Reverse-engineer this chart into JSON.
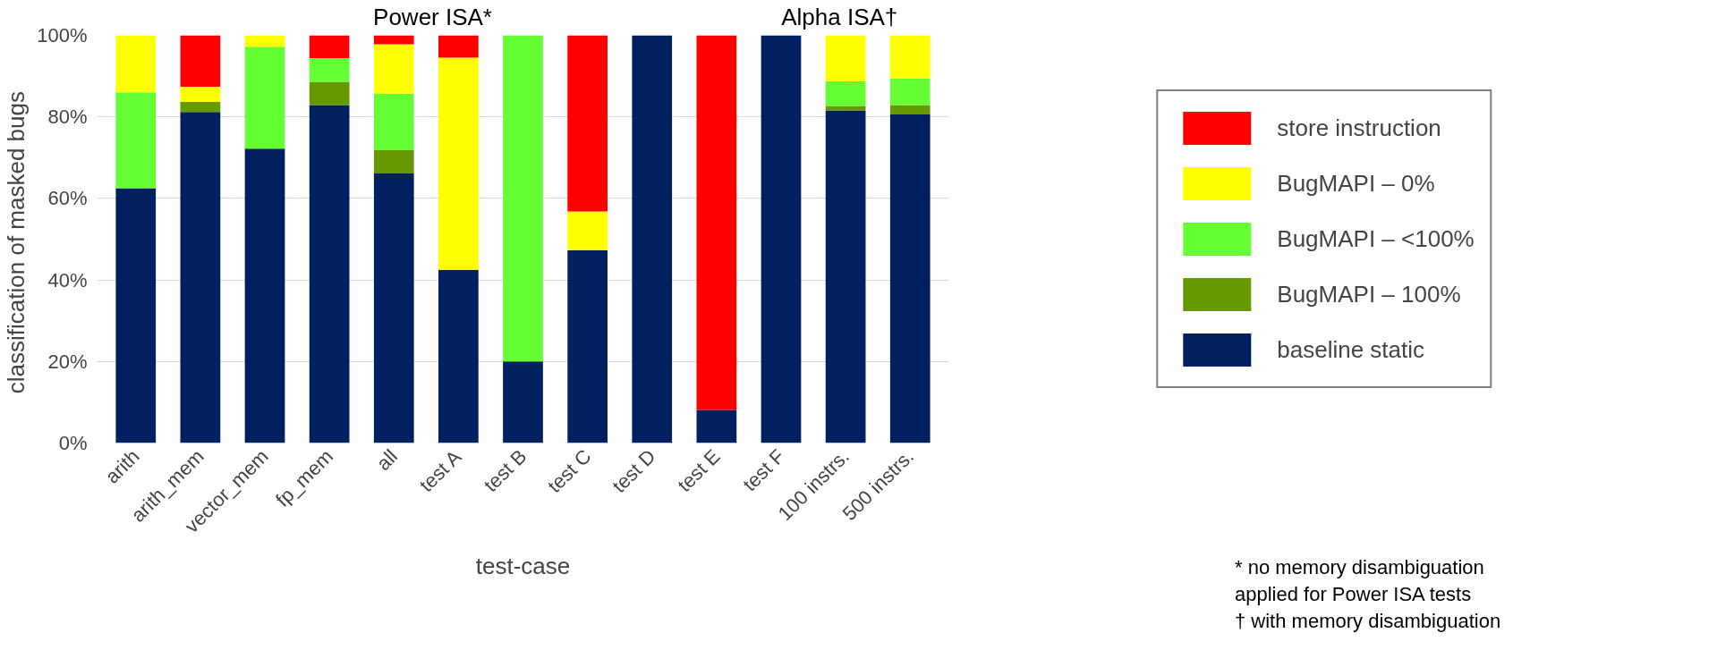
{
  "chart_data": {
    "type": "bar",
    "stacked": true,
    "categories": [
      "arith",
      "arith_mem",
      "vector_mem",
      "fp_mem",
      "all",
      "test A",
      "test B",
      "test C",
      "test D",
      "test E",
      "test F",
      "100 instrs.",
      "500 instrs."
    ],
    "series": [
      {
        "name": "baseline static",
        "color": "#002060",
        "values": [
          62.5,
          81.2,
          72.2,
          82.9,
          66.1,
          42.5,
          20,
          47.3,
          100,
          8.1,
          100,
          81.6,
          80.6
        ]
      },
      {
        "name": "BugMAPI – 100%",
        "color": "#669900",
        "values": [
          0,
          2.5,
          0,
          5.7,
          5.7,
          0,
          0,
          0,
          0,
          0,
          0,
          1.1,
          2.3
        ]
      },
      {
        "name": "BugMAPI – <100%",
        "color": "#66ff33",
        "values": [
          23.5,
          0,
          25,
          5.8,
          13.9,
          0,
          80,
          0,
          0,
          0,
          0,
          6,
          6.5
        ]
      },
      {
        "name": "BugMAPI – 0%",
        "color": "#ffff00",
        "values": [
          14,
          3.7,
          2.8,
          0,
          12.1,
          52,
          0,
          9.5,
          0,
          0,
          0,
          11.3,
          10.6
        ]
      },
      {
        "name": "store instruction",
        "color": "#ff0000",
        "values": [
          0,
          12.6,
          0,
          5.6,
          2.2,
          5.5,
          0,
          43.2,
          0,
          91.9,
          0,
          0,
          0
        ]
      }
    ],
    "ylim": [
      0,
      100
    ],
    "yticks": [
      {
        "value": 0,
        "label": "0%"
      },
      {
        "value": 20,
        "label": "20%"
      },
      {
        "value": 40,
        "label": "40%"
      },
      {
        "value": 60,
        "label": "60%"
      },
      {
        "value": 80,
        "label": "80%"
      },
      {
        "value": 100,
        "label": "100%"
      }
    ],
    "xlabel": "test-case",
    "ylabel": "classification of  masked bugs",
    "grid": "y",
    "legend": "right",
    "annotations": [
      "Power ISA*",
      "Alpha ISA†",
      "* no memory disambiguation\napplied for Power ISA tests",
      "† with memory disambiguation"
    ]
  }
}
